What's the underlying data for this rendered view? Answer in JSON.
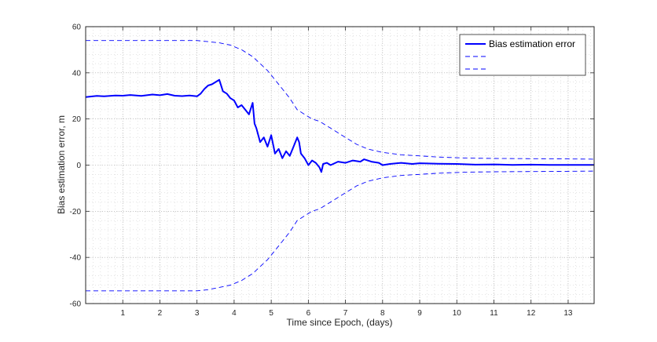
{
  "chart_data": {
    "type": "line",
    "xlabel": "Time since Epoch, (days)",
    "ylabel": "Bias estimation error, m",
    "xlim": [
      0,
      13.7
    ],
    "ylim": [
      -60,
      60
    ],
    "x_ticks": [
      1,
      2,
      3,
      4,
      5,
      6,
      7,
      8,
      9,
      10,
      11,
      12,
      13
    ],
    "y_ticks": [
      -60,
      -40,
      -20,
      0,
      20,
      40,
      60
    ],
    "grid": "major and minor dotted",
    "legend_position": "top-right",
    "colors": {
      "series": "#0000ff",
      "axes": "#262626",
      "grid": "#c8c8c8"
    },
    "series": [
      {
        "name": "Bias estimation error",
        "style": "solid",
        "x": [
          0,
          0.3,
          0.5,
          0.8,
          1.0,
          1.2,
          1.5,
          1.8,
          2.0,
          2.2,
          2.4,
          2.6,
          2.8,
          3.0,
          3.1,
          3.2,
          3.3,
          3.4,
          3.5,
          3.6,
          3.7,
          3.8,
          3.9,
          4.0,
          4.1,
          4.2,
          4.3,
          4.4,
          4.5,
          4.55,
          4.6,
          4.7,
          4.8,
          4.9,
          5.0,
          5.1,
          5.2,
          5.3,
          5.4,
          5.5,
          5.6,
          5.7,
          5.75,
          5.8,
          5.9,
          6.0,
          6.1,
          6.2,
          6.3,
          6.35,
          6.4,
          6.5,
          6.6,
          6.8,
          7.0,
          7.2,
          7.4,
          7.5,
          7.7,
          7.9,
          8.0,
          8.2,
          8.5,
          8.8,
          9.0,
          9.5,
          10.0,
          10.5,
          11.0,
          11.5,
          12.0,
          12.5,
          13.0,
          13.7
        ],
        "y": [
          29.5,
          30,
          29.8,
          30.2,
          30.1,
          30.4,
          30.0,
          30.6,
          30.3,
          30.8,
          30.1,
          29.9,
          30.2,
          29.8,
          31,
          33,
          34.5,
          35,
          36,
          37,
          32,
          31,
          29,
          28,
          25,
          26,
          24,
          22,
          27,
          18,
          16,
          10,
          12,
          8,
          13,
          5,
          7,
          3,
          6,
          4,
          8,
          12,
          10,
          5,
          3,
          0,
          2,
          1,
          -1,
          -3,
          0.5,
          1,
          0,
          1.5,
          1,
          2,
          1.5,
          2.5,
          1.5,
          1,
          0,
          0.5,
          1,
          0.5,
          0.8,
          0.6,
          0.5,
          0.2,
          0.3,
          0.1,
          0.2,
          0.1,
          0.1,
          0.1
        ]
      },
      {
        "style": "dashed",
        "x": [
          0,
          0.5,
          1.0,
          1.5,
          2.0,
          2.5,
          3.0,
          3.3,
          3.6,
          3.9,
          4.2,
          4.5,
          4.7,
          4.9,
          5.1,
          5.3,
          5.5,
          5.7,
          5.9,
          6.1,
          6.3,
          6.5,
          6.8,
          7.0,
          7.3,
          7.6,
          8.0,
          8.5,
          9.0,
          9.5,
          10.0,
          10.5,
          11.0,
          12.0,
          13.0,
          13.7
        ],
        "y": [
          54,
          54,
          54,
          54,
          54,
          54,
          54,
          53.5,
          53,
          52,
          50,
          47,
          44,
          41,
          37,
          33,
          29,
          24,
          22,
          20,
          19,
          17,
          14,
          12,
          9,
          7,
          5.5,
          4.5,
          4,
          3.5,
          3.2,
          3,
          2.9,
          2.8,
          2.7,
          2.6
        ]
      },
      {
        "style": "dashed",
        "x": [
          0,
          0.5,
          1.0,
          1.5,
          2.0,
          2.5,
          3.0,
          3.3,
          3.6,
          3.9,
          4.2,
          4.5,
          4.7,
          4.9,
          5.1,
          5.3,
          5.5,
          5.7,
          5.9,
          6.1,
          6.3,
          6.5,
          6.8,
          7.0,
          7.3,
          7.6,
          8.0,
          8.5,
          9.0,
          9.5,
          10.0,
          10.5,
          11.0,
          12.0,
          13.0,
          13.7
        ],
        "y": [
          -54.5,
          -54.5,
          -54.5,
          -54.5,
          -54.5,
          -54.5,
          -54.5,
          -54,
          -53,
          -52,
          -50,
          -47,
          -44,
          -41,
          -37,
          -33,
          -29,
          -24,
          -22,
          -20,
          -19,
          -17,
          -14,
          -12,
          -9,
          -7,
          -5.5,
          -4.5,
          -4,
          -3.5,
          -3.2,
          -3,
          -2.9,
          -2.8,
          -2.7,
          -2.6
        ]
      }
    ]
  }
}
